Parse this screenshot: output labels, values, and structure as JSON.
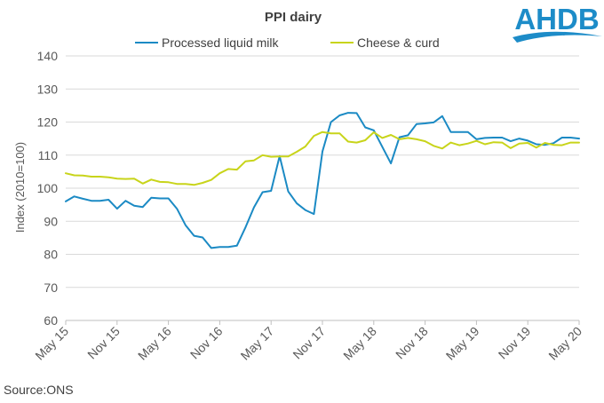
{
  "logo": {
    "text": "AHDB",
    "color": "#1d8cc8"
  },
  "source": "Source:ONS",
  "chart_data": {
    "type": "line",
    "title": "PPI dairy",
    "ylabel": "Index  (2010=100)",
    "xlabel": "",
    "ylim": [
      60,
      140
    ],
    "yticks": [
      60,
      70,
      80,
      90,
      100,
      110,
      120,
      130,
      140
    ],
    "grid": "horizontal",
    "legend": "top",
    "x_tick_labels": [
      "May 15",
      "Nov 15",
      "May 16",
      "Nov 16",
      "May 17",
      "Nov 17",
      "May 18",
      "Nov 18",
      "May 19",
      "Nov 19",
      "May 20"
    ],
    "x": [
      "2015-05",
      "2015-06",
      "2015-07",
      "2015-08",
      "2015-09",
      "2015-10",
      "2015-11",
      "2015-12",
      "2016-01",
      "2016-02",
      "2016-03",
      "2016-04",
      "2016-05",
      "2016-06",
      "2016-07",
      "2016-08",
      "2016-09",
      "2016-10",
      "2016-11",
      "2016-12",
      "2017-01",
      "2017-02",
      "2017-03",
      "2017-04",
      "2017-05",
      "2017-06",
      "2017-07",
      "2017-08",
      "2017-09",
      "2017-10",
      "2017-11",
      "2017-12",
      "2018-01",
      "2018-02",
      "2018-03",
      "2018-04",
      "2018-05",
      "2018-06",
      "2018-07",
      "2018-08",
      "2018-09",
      "2018-10",
      "2018-11",
      "2018-12",
      "2019-01",
      "2019-02",
      "2019-03",
      "2019-04",
      "2019-05",
      "2019-06",
      "2019-07",
      "2019-08",
      "2019-09",
      "2019-10",
      "2019-11",
      "2019-12",
      "2020-01",
      "2020-02",
      "2020-03",
      "2020-04",
      "2020-05"
    ],
    "series": [
      {
        "name": "Processed liquid milk",
        "color": "#1b8ac4",
        "values": [
          96.0,
          97.5,
          96.8,
          96.2,
          96.2,
          96.5,
          93.8,
          96.2,
          94.7,
          94.3,
          97.1,
          96.9,
          96.9,
          93.8,
          88.8,
          85.6,
          85.1,
          81.9,
          82.2,
          82.2,
          82.6,
          88.1,
          94.2,
          98.8,
          99.2,
          109.7,
          99.0,
          95.4,
          93.4,
          92.2,
          111.1,
          120.0,
          122.0,
          122.8,
          122.7,
          118.4,
          117.5,
          112.5,
          107.5,
          115.4,
          116.0,
          119.4,
          119.6,
          119.9,
          121.8,
          117.0,
          117.0,
          117.0,
          114.8,
          115.2,
          115.3,
          115.3,
          114.2,
          115.0,
          114.4,
          113.3,
          113.1,
          113.6,
          115.3,
          115.3,
          115.0
        ]
      },
      {
        "name": "Cheese & curd",
        "color": "#c8d41a",
        "values": [
          104.5,
          103.9,
          103.8,
          103.5,
          103.5,
          103.3,
          102.9,
          102.8,
          102.9,
          101.4,
          102.6,
          101.9,
          101.8,
          101.3,
          101.3,
          101.0,
          101.6,
          102.5,
          104.5,
          105.8,
          105.6,
          108.1,
          108.4,
          110.0,
          109.5,
          109.6,
          109.6,
          111.0,
          112.6,
          115.8,
          117.0,
          116.6,
          116.6,
          114.1,
          113.8,
          114.5,
          116.9,
          115.2,
          116.1,
          114.8,
          115.2,
          114.8,
          114.2,
          112.8,
          112.0,
          113.8,
          113.0,
          113.5,
          114.3,
          113.3,
          113.9,
          113.8,
          112.1,
          113.5,
          113.7,
          112.3,
          113.7,
          113.1,
          113.0,
          113.8,
          113.8
        ]
      }
    ]
  }
}
